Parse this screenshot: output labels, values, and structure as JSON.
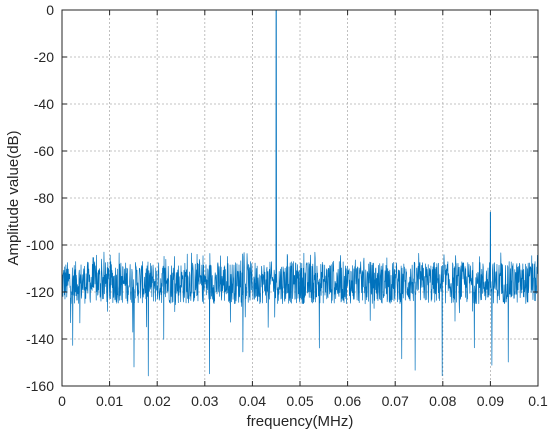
{
  "chart_data": {
    "type": "line",
    "title": "",
    "xlabel": "frequency(MHz)",
    "ylabel": "Amplitude value(dB)",
    "xlim": [
      0,
      0.1
    ],
    "ylim": [
      -160,
      0
    ],
    "x_ticks": [
      0,
      0.01,
      0.02,
      0.03,
      0.04,
      0.05,
      0.06,
      0.07,
      0.08,
      0.09,
      0.1
    ],
    "x_tick_labels": [
      "0",
      "0.01",
      "0.02",
      "0.03",
      "0.04",
      "0.05",
      "0.06",
      "0.07",
      "0.08",
      "0.09",
      "0.1"
    ],
    "y_ticks": [
      0,
      -20,
      -40,
      -60,
      -80,
      -100,
      -120,
      -140,
      -160
    ],
    "y_tick_labels": [
      "0",
      "-20",
      "-40",
      "-60",
      "-80",
      "-100",
      "-120",
      "-140",
      "-160"
    ],
    "grid": true,
    "line_color": "#0072BD",
    "series": [
      {
        "noise_floor_db": -116,
        "noise_band_db": [
          -125,
          -107
        ],
        "noise_extremes_db": [
          -157,
          -103
        ],
        "peaks": [
          {
            "x": 0.045,
            "y": 0
          },
          {
            "x": 0.09,
            "y": -86
          }
        ]
      }
    ]
  }
}
